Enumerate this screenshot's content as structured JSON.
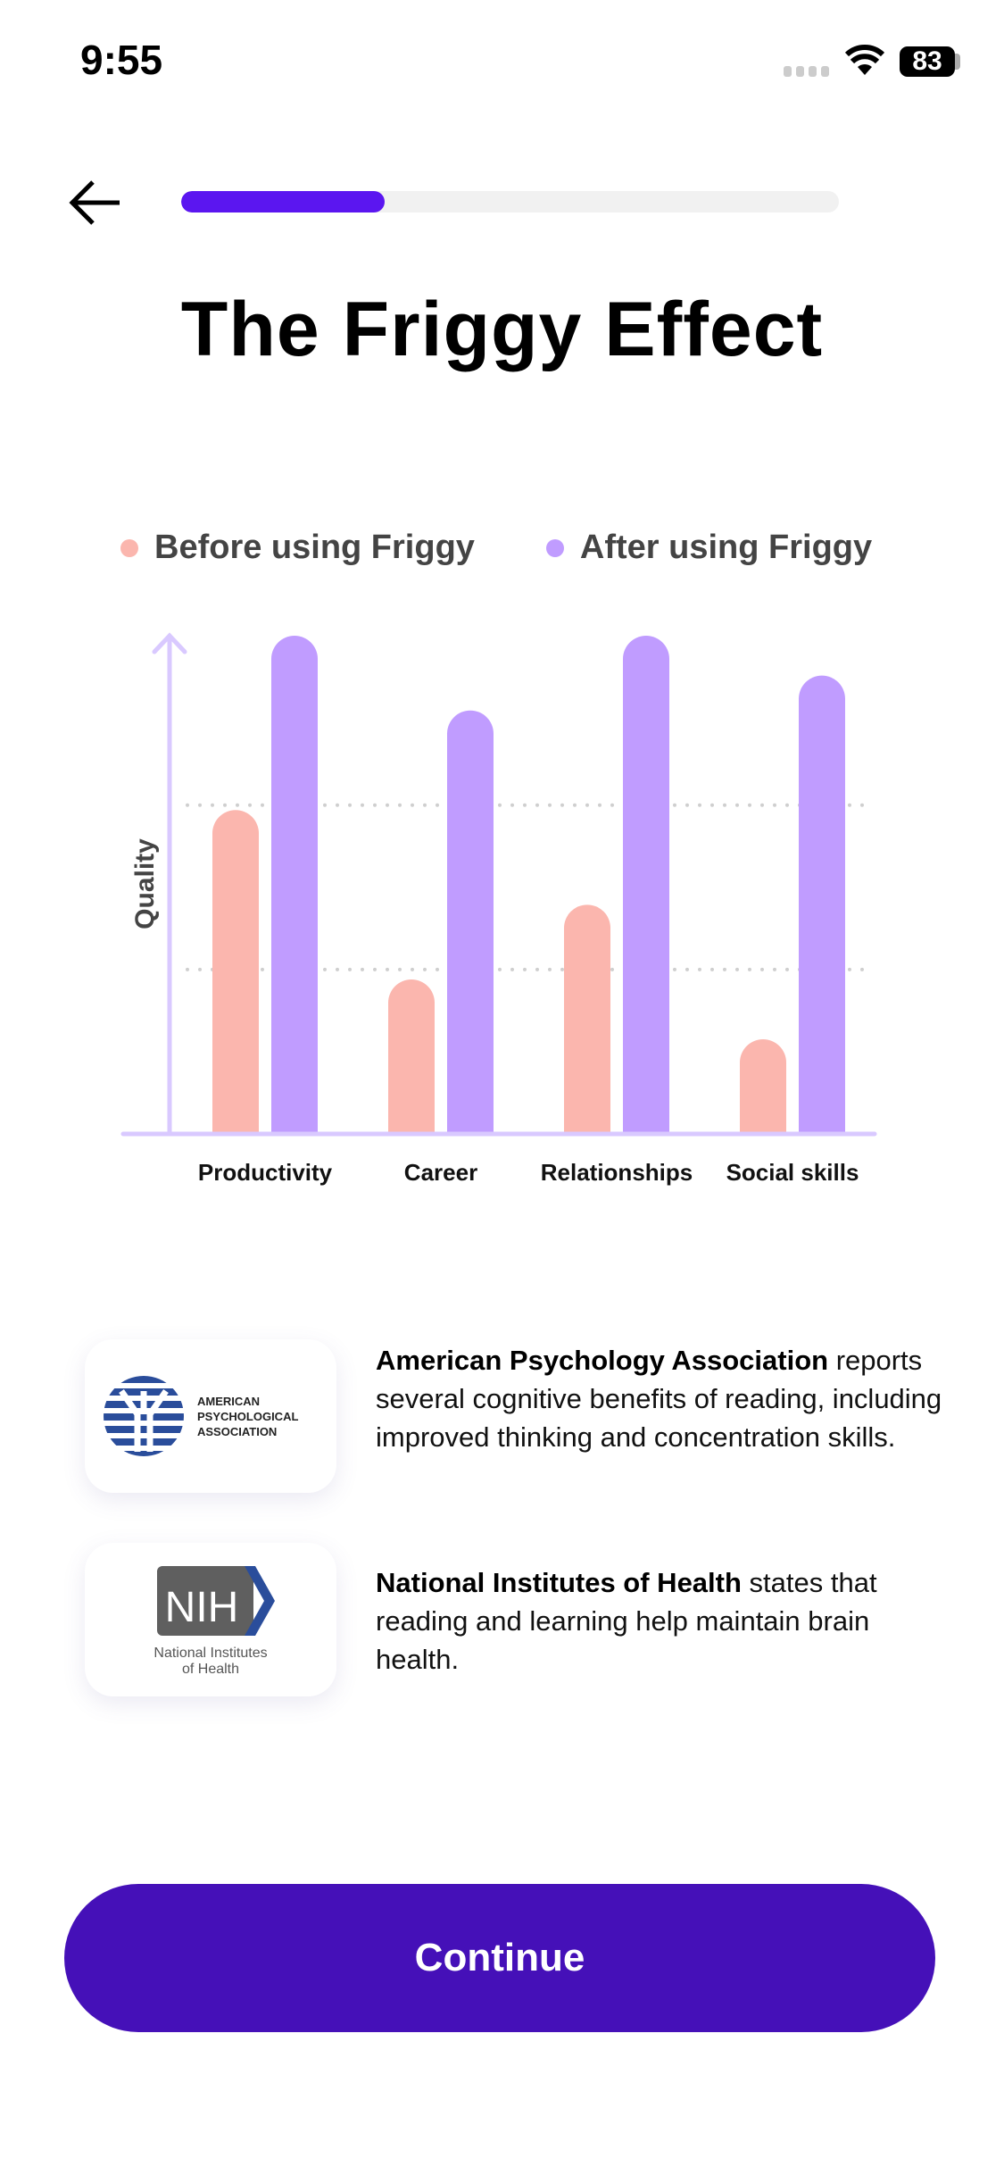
{
  "status_bar": {
    "time": "9:55",
    "battery": "83"
  },
  "progress": {
    "fraction": 0.31
  },
  "title": "The Friggy Effect",
  "colors": {
    "before": "#fbb6ae",
    "after": "#c09cff",
    "accent": "#5b16f0",
    "button": "#4510b8",
    "axis": "#d9c9ff"
  },
  "chart_data": {
    "type": "bar",
    "ylabel": "Quality",
    "xlabel": "",
    "ylim": [
      0,
      100
    ],
    "grid": "dotted",
    "legend": "top",
    "categories": [
      "Productivity",
      "Career",
      "Relationships",
      "Social skills"
    ],
    "series": [
      {
        "name": "Before using Friggy",
        "values": [
          65,
          31,
          46,
          19
        ]
      },
      {
        "name": "After using Friggy",
        "values": [
          100,
          85,
          100,
          92
        ]
      }
    ]
  },
  "sources": [
    {
      "logo_lines": [
        "AMERICAN",
        "PSYCHOLOGICAL",
        "ASSOCIATION"
      ],
      "name": "American Psychology Association",
      "text": " reports several cognitive benefits of reading, including improved thinking and concentration skills."
    },
    {
      "logo_lines": [
        "NIH",
        "National Institutes",
        "of Health"
      ],
      "name": "National Institutes of Health",
      "text": " states that reading and learning help maintain brain health."
    }
  ],
  "continue_label": "Continue"
}
